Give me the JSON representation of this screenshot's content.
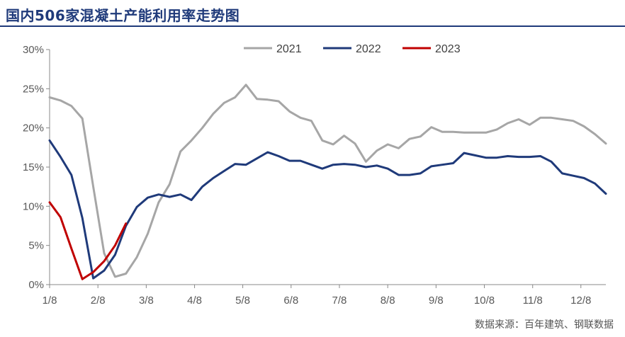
{
  "title": "国内506家混凝土产能利用率走势图",
  "source": "数据来源：百年建筑、钢联数据",
  "chart_data": {
    "type": "line",
    "title": "国内506家混凝土产能利用率走势图",
    "xlabel": "",
    "ylabel": "",
    "x_range": [
      1,
      52
    ],
    "ylim": [
      0,
      30
    ],
    "y_ticks": [
      0,
      5,
      10,
      15,
      20,
      25,
      30
    ],
    "y_tick_labels": [
      "0%",
      "5%",
      "10%",
      "15%",
      "20%",
      "25%",
      "30%"
    ],
    "x_ticks": [
      1,
      5.43,
      9.86,
      14.29,
      18.71,
      23.14,
      27.57,
      32.0,
      36.43,
      40.86,
      45.29,
      49.71
    ],
    "x_tick_labels": [
      "1/8",
      "2/8",
      "3/8",
      "4/8",
      "5/8",
      "6/8",
      "7/8",
      "8/8",
      "9/8",
      "10/8",
      "11/8",
      "12/8"
    ],
    "grid": false,
    "legend_position": "top-center",
    "series": [
      {
        "name": "2021",
        "color": "#a6a6a6",
        "x": [
          1,
          2,
          3,
          4,
          5,
          6,
          7,
          8,
          9,
          10,
          11,
          12,
          13,
          14,
          15,
          16,
          17,
          18,
          19,
          20,
          21,
          22,
          23,
          24,
          25,
          26,
          27,
          28,
          29,
          30,
          31,
          32,
          33,
          34,
          35,
          36,
          37,
          38,
          39,
          40,
          41,
          42,
          43,
          44,
          45,
          46,
          47,
          48,
          49,
          50,
          51,
          52
        ],
        "values": [
          23.9,
          23.5,
          22.8,
          21.2,
          12.5,
          4.0,
          1.0,
          1.4,
          3.5,
          6.5,
          10.5,
          12.8,
          17.0,
          18.4,
          20.0,
          21.8,
          23.2,
          23.9,
          25.5,
          23.7,
          23.6,
          23.4,
          22.1,
          21.3,
          20.9,
          18.4,
          17.9,
          19.0,
          18.0,
          15.7,
          17.1,
          17.9,
          17.4,
          18.6,
          18.9,
          20.1,
          19.5,
          19.5,
          19.4,
          19.4,
          19.4,
          19.8,
          20.6,
          21.1,
          20.4,
          21.3,
          21.3,
          21.1,
          20.9,
          20.2,
          19.2,
          18.0
        ]
      },
      {
        "name": "2022",
        "color": "#1f3a7a",
        "x": [
          1,
          2,
          3,
          4,
          5,
          6,
          7,
          8,
          9,
          10,
          11,
          12,
          13,
          14,
          15,
          16,
          17,
          18,
          19,
          20,
          21,
          22,
          23,
          24,
          25,
          26,
          27,
          28,
          29,
          30,
          31,
          32,
          33,
          34,
          35,
          36,
          37,
          38,
          39,
          40,
          41,
          42,
          43,
          44,
          45,
          46,
          47,
          48,
          49,
          50,
          51,
          52
        ],
        "values": [
          18.4,
          16.3,
          14.0,
          8.5,
          0.8,
          1.8,
          3.8,
          7.5,
          9.9,
          11.1,
          11.5,
          11.2,
          11.5,
          10.8,
          12.5,
          13.6,
          14.5,
          15.4,
          15.3,
          16.1,
          16.9,
          16.4,
          15.8,
          15.8,
          15.3,
          14.8,
          15.3,
          15.4,
          15.3,
          15.0,
          15.2,
          14.8,
          14.0,
          14.0,
          14.2,
          15.1,
          15.3,
          15.5,
          16.8,
          16.5,
          16.2,
          16.2,
          16.4,
          16.3,
          16.3,
          16.4,
          15.7,
          14.2,
          13.9,
          13.6,
          12.9,
          11.6
        ]
      },
      {
        "name": "2023",
        "color": "#c00000",
        "x": [
          1,
          2,
          3,
          4,
          5,
          6,
          7,
          8
        ],
        "values": [
          10.5,
          8.6,
          4.6,
          0.7,
          1.6,
          3.0,
          5.0,
          7.8
        ]
      }
    ]
  }
}
